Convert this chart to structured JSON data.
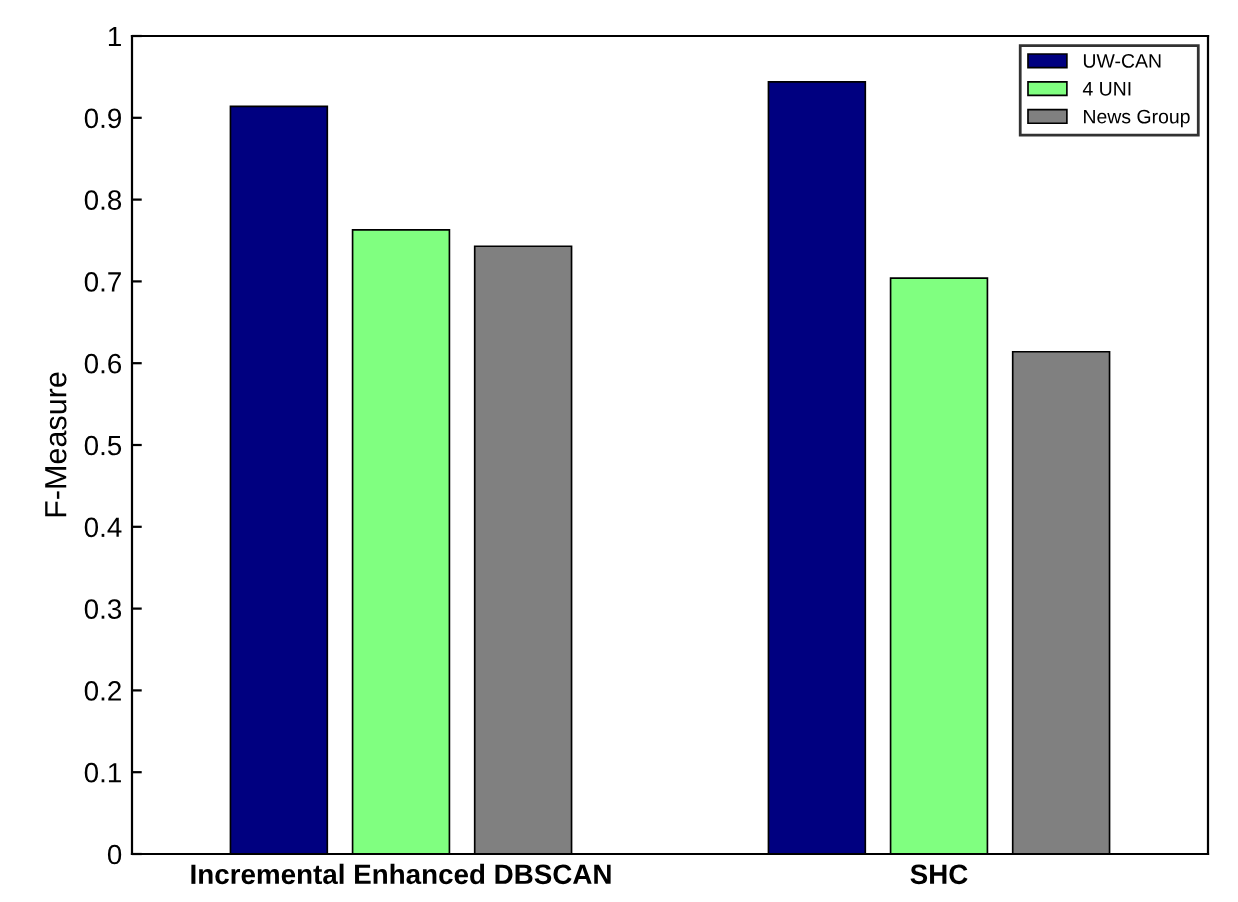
{
  "chart_data": {
    "type": "bar",
    "ylabel": "F-Measure",
    "categories": [
      "Incremental Enhanced DBSCAN",
      "SHC"
    ],
    "series": [
      {
        "name": "UW-CAN",
        "color": "#000080",
        "values": [
          0.914,
          0.944
        ]
      },
      {
        "name": "4 UNI",
        "color": "#80ff80",
        "values": [
          0.763,
          0.704
        ]
      },
      {
        "name": "News Group",
        "color": "#808080",
        "values": [
          0.743,
          0.614
        ]
      }
    ],
    "ylim": [
      0,
      1
    ],
    "yticks": [
      {
        "value": 0,
        "label": "0"
      },
      0.1,
      0.2,
      0.3,
      0.4,
      0.5,
      0.6,
      0.7,
      0.8,
      0.9,
      {
        "value": 1,
        "label": "1"
      }
    ],
    "legend": "top right",
    "grid": false
  }
}
